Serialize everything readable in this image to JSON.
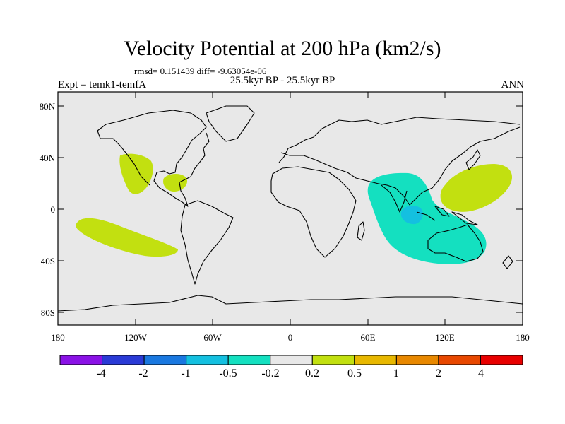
{
  "title": "Velocity Potential at 200 hPa (km2/s)",
  "stats": "rmsd= 0.151439 diff= -9.63054e-06",
  "subtitle": "25.5kyr BP - 25.5kyr BP",
  "left_label": "Expt = temk1-temfA",
  "right_label": "ANN",
  "lat_labels": [
    "80N",
    "40N",
    "0",
    "40S",
    "80S"
  ],
  "lon_labels": [
    "180",
    "120W",
    "60W",
    "0",
    "60E",
    "120E",
    "180"
  ],
  "colorbar": {
    "labels": [
      "-4",
      "-2",
      "-1",
      "-0.5",
      "-0.2",
      "0.2",
      "0.5",
      "1",
      "2",
      "4"
    ],
    "colors": [
      "#8a12e6",
      "#2a3ad6",
      "#1a78e0",
      "#14c0e0",
      "#14e0c0",
      "#e8e8e8",
      "#c2e010",
      "#e8b800",
      "#e88800",
      "#e84800",
      "#e80000"
    ]
  },
  "colors": {
    "background_fill": "#e8e8e8",
    "positive_fill": "#c2e010",
    "negative_fill": "#14e0c0",
    "negative_core": "#14c0e0"
  }
}
